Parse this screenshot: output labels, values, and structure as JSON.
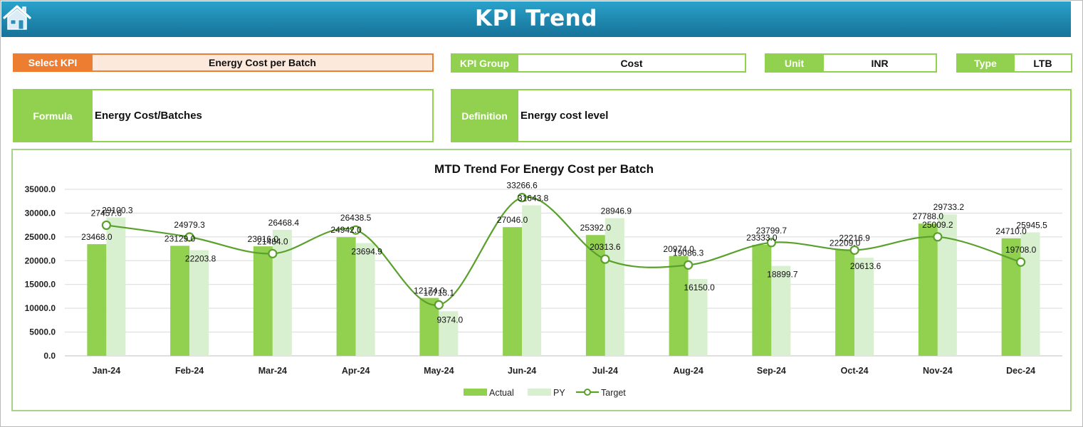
{
  "header": {
    "title": "KPI Trend",
    "home_icon": "home-icon"
  },
  "filters": {
    "select_kpi": {
      "label": "Select KPI",
      "value": "Energy Cost per Batch"
    },
    "kpi_group": {
      "label": "KPI Group",
      "value": "Cost"
    },
    "unit": {
      "label": "Unit",
      "value": "INR"
    },
    "type": {
      "label": "Type",
      "value": "LTB"
    },
    "formula": {
      "label": "Formula",
      "value": "Energy Cost/Batches"
    },
    "definition": {
      "label": "Definition",
      "value": "Energy cost level"
    }
  },
  "colors": {
    "accent_green": "#92d050",
    "orange": "#ed7d31",
    "header_blue": "#1f86ad",
    "actual": "#92d050",
    "py": "#d9f0d0",
    "target": "#5aa02c"
  },
  "chart_data": {
    "type": "bar",
    "title": "MTD Trend For Energy Cost per Batch",
    "categories": [
      "Jan-24",
      "Feb-24",
      "Mar-24",
      "Apr-24",
      "May-24",
      "Jun-24",
      "Jul-24",
      "Aug-24",
      "Sep-24",
      "Oct-24",
      "Nov-24",
      "Dec-24"
    ],
    "ylim": [
      0,
      35000
    ],
    "yticks": [
      "0.0",
      "5000.0",
      "10000.0",
      "15000.0",
      "20000.0",
      "25000.0",
      "30000.0",
      "35000.0"
    ],
    "grid": true,
    "legend": "bottom",
    "series": [
      {
        "name": "Actual",
        "kind": "bar",
        "values": [
          23468.0,
          23129.0,
          23016.0,
          24942.0,
          12174.0,
          27046.0,
          25392.0,
          20974.0,
          23333.0,
          22209.0,
          27788.0,
          24710.0
        ],
        "labels": [
          "23468.0",
          "23129.0",
          "23016.0",
          "24942.0",
          "12174.0",
          "27046.0",
          "25392.0",
          "20974.0",
          "23333.0",
          "22209.0",
          "27788.0",
          "24710.0"
        ]
      },
      {
        "name": "PY",
        "kind": "bar",
        "values": [
          29100.3,
          22203.8,
          26468.4,
          23694.9,
          9374.0,
          31643.8,
          28946.9,
          16150.0,
          18899.7,
          20613.6,
          29733.2,
          25945.5
        ],
        "labels": [
          "29100.3",
          "22203.8",
          "26468.4",
          "23694.9",
          "9374.0",
          "31643.8",
          "28946.9",
          "16150.0",
          "18899.7",
          "20613.6",
          "29733.2",
          "25945.5"
        ]
      },
      {
        "name": "Target",
        "kind": "line",
        "values": [
          27457.6,
          24979.3,
          21484.0,
          26438.5,
          10713.1,
          33266.6,
          20313.6,
          19086.3,
          23799.7,
          22216.9,
          25009.2,
          19708.0
        ],
        "labels": [
          "27457.6",
          "24979.3",
          "21484.0",
          "26438.5",
          "10713.1",
          "33266.6",
          "20313.6",
          "19086.3",
          "23799.7",
          "22216.9",
          "25009.2",
          "19708.0"
        ]
      }
    ]
  }
}
